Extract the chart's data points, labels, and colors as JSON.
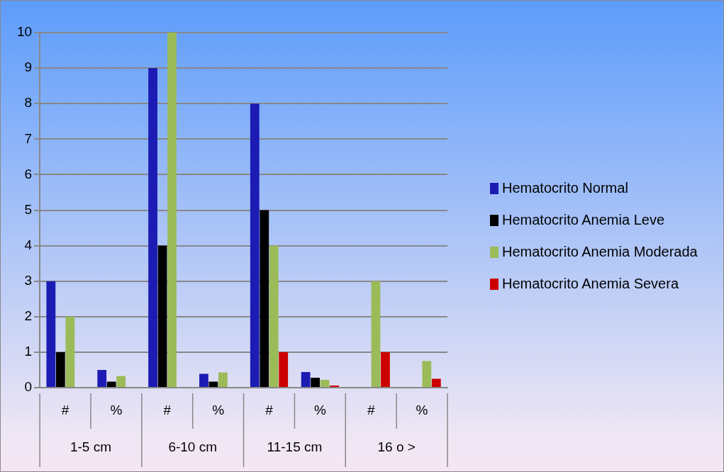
{
  "chart_data": {
    "type": "bar",
    "categories": [
      "#",
      "%",
      "#",
      "%",
      "#",
      "%",
      "#",
      "%"
    ],
    "series": [
      {
        "name": "Hematocrito Normal",
        "color": "#1c1cb4",
        "values": [
          3,
          0.5,
          9,
          0.39,
          8,
          0.44,
          0,
          0
        ]
      },
      {
        "name": "Hematocrito Anemia Leve",
        "color": "#000000",
        "values": [
          1,
          0.17,
          4,
          0.17,
          5,
          0.28,
          0,
          0
        ]
      },
      {
        "name": "Hematocrito Anemia Moderada",
        "color": "#9bbb59",
        "values": [
          2,
          0.33,
          10,
          0.43,
          4,
          0.22,
          3,
          0.75
        ]
      },
      {
        "name": "Hematocrito Anemia Severa",
        "color": "#cc0000",
        "values": [
          0,
          0,
          0,
          0,
          1,
          0.06,
          1,
          0.25
        ]
      }
    ],
    "ylim": [
      0,
      10
    ],
    "yticks": [
      0,
      1,
      2,
      3,
      4,
      5,
      6,
      7,
      8,
      9,
      10
    ],
    "grid": "y",
    "legend": "right",
    "annotations": [
      "1-5 cm",
      "6-10 cm",
      "11-15 cm",
      "16 o >"
    ]
  }
}
